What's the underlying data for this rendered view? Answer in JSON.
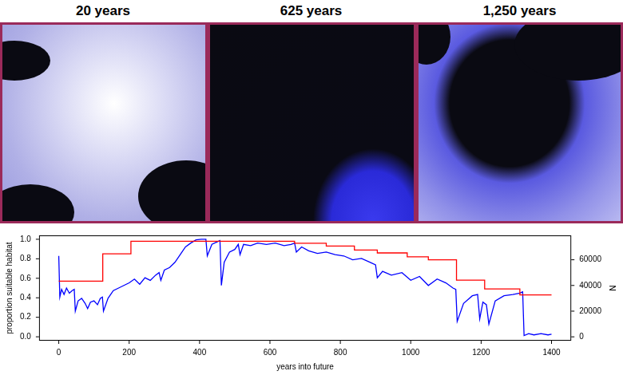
{
  "panels": [
    {
      "title": "20 years"
    },
    {
      "title": "625 years"
    },
    {
      "title": "1,250 years"
    }
  ],
  "chart_data": {
    "type": "line",
    "xlabel": "years into future",
    "ylabel": "proportion suitable habitat",
    "y2label": "N",
    "xlim": [
      -56,
      1456
    ],
    "xticks": [
      0,
      200,
      400,
      600,
      800,
      1000,
      1200,
      1400
    ],
    "ylim": [
      -0.04,
      1.04
    ],
    "yticks": [
      {
        "value": 0,
        "label": "0.0"
      },
      0.2,
      0.4,
      0.6,
      0.8,
      {
        "value": 1,
        "label": "1.0"
      }
    ],
    "y2lim": [
      -3000,
      79000
    ],
    "y2ticks": [
      0,
      20000,
      40000,
      60000
    ],
    "grid": false,
    "series": [
      {
        "color": "#ff0000",
        "line_style": "steps",
        "x": [
          0,
          125,
          205,
          670,
          760,
          840,
          905,
          990,
          1050,
          1130,
          1210,
          1310,
          1400
        ],
        "values": [
          0.57,
          0.85,
          0.98,
          0.96,
          0.93,
          0.89,
          0.86,
          0.82,
          0.79,
          0.58,
          0.49,
          0.43,
          0.43
        ]
      },
      {
        "color": "#0000ff",
        "axis": "y2",
        "line_style": "solid",
        "x": [
          0,
          3,
          8,
          15,
          22,
          30,
          38,
          44,
          47,
          55,
          65,
          75,
          82,
          90,
          100,
          110,
          118,
          124,
          127,
          140,
          155,
          170,
          185,
          200,
          215,
          230,
          245,
          260,
          275,
          285,
          290,
          300,
          315,
          330,
          345,
          360,
          375,
          390,
          405,
          418,
          422,
          435,
          450,
          458,
          462,
          470,
          485,
          500,
          510,
          515,
          525,
          545,
          565,
          590,
          615,
          640,
          660,
          670,
          675,
          690,
          710,
          735,
          760,
          785,
          810,
          835,
          860,
          885,
          900,
          905,
          920,
          945,
          975,
          1000,
          1025,
          1050,
          1075,
          1100,
          1120,
          1128,
          1132,
          1150,
          1175,
          1190,
          1196,
          1205,
          1215,
          1222,
          1240,
          1265,
          1290,
          1310,
          1318,
          1322,
          1335,
          1350,
          1370,
          1390,
          1400
        ],
        "values": [
          63000,
          31000,
          37000,
          33000,
          38000,
          34000,
          36000,
          37000,
          20000,
          28000,
          30000,
          26000,
          22000,
          27000,
          28000,
          25000,
          30000,
          31000,
          20000,
          30000,
          36000,
          38000,
          40000,
          42000,
          45000,
          41000,
          46000,
          44000,
          48000,
          50000,
          44000,
          52000,
          54000,
          58000,
          64000,
          70000,
          73000,
          75500,
          76000,
          76000,
          63000,
          72000,
          74000,
          75000,
          40000,
          58000,
          66000,
          68000,
          72000,
          64000,
          72000,
          71000,
          73000,
          72000,
          73000,
          71000,
          72000,
          73000,
          66000,
          70000,
          67000,
          65000,
          66000,
          64000,
          63000,
          60000,
          61000,
          58000,
          56000,
          46000,
          51000,
          48000,
          50000,
          44000,
          47000,
          40000,
          45000,
          42000,
          38000,
          37000,
          12000,
          26000,
          32000,
          33000,
          14000,
          27000,
          25000,
          10000,
          28000,
          32000,
          33000,
          34000,
          35000,
          1000,
          2500,
          1500,
          2500,
          1500,
          2000
        ]
      }
    ]
  }
}
